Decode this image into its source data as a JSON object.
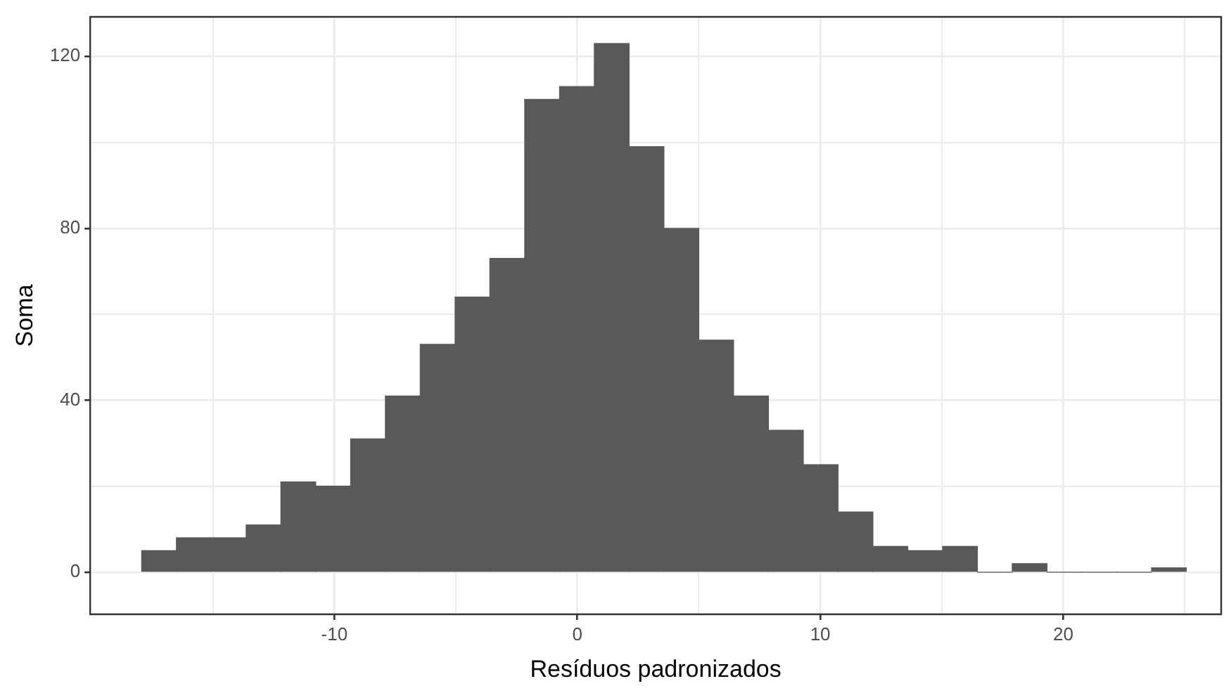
{
  "chart_data": {
    "type": "histogram",
    "xlabel": "Resíduos padronizados",
    "ylabel": "Soma",
    "color": "#595959",
    "bins": [
      -17.93,
      -16.5,
      -15.07,
      -13.63,
      -12.2,
      -10.77,
      -9.33,
      -7.9,
      -6.47,
      -5.03,
      -3.6,
      -2.17,
      -0.73,
      0.7,
      2.13,
      3.57,
      5,
      6.43,
      7.87,
      9.3,
      10.73,
      12.17,
      13.6,
      15.03,
      16.47,
      17.9,
      19.33,
      20.77,
      22.2,
      23.63,
      25.07
    ],
    "values": [
      5,
      8,
      8,
      11,
      21,
      20,
      31,
      41,
      53,
      64,
      73,
      110,
      113,
      123,
      99,
      80,
      54,
      41,
      33,
      25,
      14,
      6,
      5,
      6,
      0,
      2,
      0,
      0,
      0,
      1
    ],
    "xlim": [
      -20.05,
      26.5
    ],
    "ylim": [
      -9.8,
      129.2
    ],
    "xticks": [
      {
        "value": -15,
        "label": null
      },
      -10,
      {
        "value": -5,
        "label": null
      },
      0,
      {
        "value": 5,
        "label": null
      },
      10,
      {
        "value": 15,
        "label": null
      },
      20,
      {
        "value": 25,
        "label": null
      }
    ],
    "yticks": [
      0,
      {
        "value": 20,
        "label": null
      },
      40,
      {
        "value": 60,
        "label": null
      },
      80,
      {
        "value": 100,
        "label": null
      },
      120
    ],
    "grid": true,
    "legend": false
  }
}
